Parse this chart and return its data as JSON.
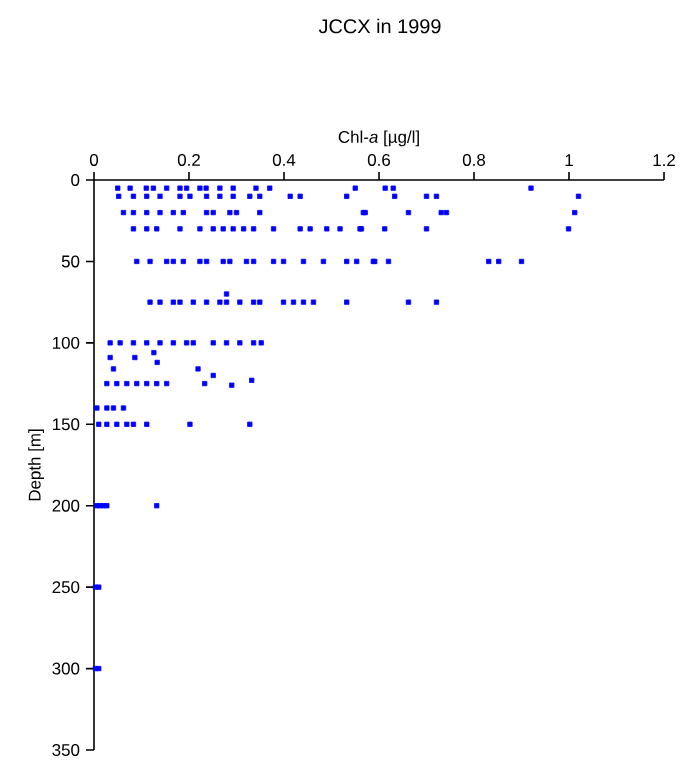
{
  "chart_data": {
    "type": "scatter",
    "title": "JCCX in 1999",
    "xlabel": "Chl-*a* [µg/l]",
    "ylabel": "Depth [m]",
    "xlim": [
      0,
      1.2
    ],
    "xticks": [
      0,
      0.2,
      0.4,
      0.6,
      0.8,
      1,
      1.2
    ],
    "ylim": [
      350,
      0
    ],
    "yticks": [
      0,
      50,
      100,
      150,
      200,
      250,
      300,
      350
    ],
    "grid": false,
    "legend": false,
    "marker": "square",
    "series": [
      {
        "color": "#0000ff",
        "x": [
          0.05,
          0.076,
          0.11,
          0.125,
          0.153,
          0.181,
          0.195,
          0.223,
          0.236,
          0.265,
          0.293,
          0.341,
          0.37,
          0.55,
          0.613,
          0.63,
          0.92,
          0.052,
          0.083,
          0.111,
          0.139,
          0.181,
          0.202,
          0.237,
          0.265,
          0.293,
          0.328,
          0.349,
          0.413,
          0.434,
          0.532,
          0.633,
          0.7,
          0.721,
          1.02,
          0.062,
          0.083,
          0.111,
          0.139,
          0.167,
          0.188,
          0.237,
          0.251,
          0.286,
          0.3,
          0.349,
          0.567,
          0.571,
          0.662,
          0.731,
          0.742,
          1.012,
          0.083,
          0.111,
          0.132,
          0.181,
          0.223,
          0.251,
          0.272,
          0.293,
          0.315,
          0.336,
          0.378,
          0.434,
          0.455,
          0.49,
          0.518,
          0.56,
          0.563,
          0.612,
          0.7,
          0.999,
          0.09,
          0.118,
          0.153,
          0.167,
          0.188,
          0.223,
          0.237,
          0.272,
          0.286,
          0.321,
          0.336,
          0.378,
          0.399,
          0.441,
          0.483,
          0.532,
          0.553,
          0.588,
          0.591,
          0.62,
          0.831,
          0.852,
          0.9,
          0.118,
          0.139,
          0.167,
          0.181,
          0.209,
          0.237,
          0.265,
          0.279,
          0.307,
          0.336,
          0.349,
          0.399,
          0.42,
          0.441,
          0.462,
          0.532,
          0.662,
          0.721,
          0.279,
          0.034,
          0.055,
          0.083,
          0.111,
          0.139,
          0.167,
          0.195,
          0.209,
          0.251,
          0.279,
          0.307,
          0.336,
          0.352,
          0.034,
          0.086,
          0.126,
          0.133,
          0.041,
          0.219,
          0.251,
          0.233,
          0.29,
          0.027,
          0.048,
          0.069,
          0.09,
          0.111,
          0.132,
          0.153,
          0.332,
          0.006,
          0.027,
          0.041,
          0.062,
          0.01,
          0.027,
          0.048,
          0.069,
          0.083,
          0.111,
          0.202,
          0.328,
          0.006,
          0.013,
          0.02,
          0.027,
          0.132,
          0.003,
          0.01,
          0.003,
          0.01
        ],
        "values": [
          5,
          5,
          5,
          5,
          5,
          5,
          5,
          5,
          5,
          5,
          5,
          5,
          5,
          5,
          5,
          5,
          5,
          10,
          10,
          10,
          10,
          10,
          10,
          10,
          10,
          10,
          10,
          10,
          10,
          10,
          10,
          10,
          10,
          10,
          10,
          20,
          20,
          20,
          20,
          20,
          20,
          20,
          20,
          20,
          20,
          20,
          20,
          20,
          20,
          20,
          20,
          20,
          30,
          30,
          30,
          30,
          30,
          30,
          30,
          30,
          30,
          30,
          30,
          30,
          30,
          30,
          30,
          30,
          30,
          30,
          30,
          30,
          50,
          50,
          50,
          50,
          50,
          50,
          50,
          50,
          50,
          50,
          50,
          50,
          50,
          50,
          50,
          50,
          50,
          50,
          50,
          50,
          50,
          50,
          50,
          75,
          75,
          75,
          75,
          75,
          75,
          75,
          75,
          75,
          75,
          75,
          75,
          75,
          75,
          75,
          75,
          75,
          75,
          70,
          100,
          100,
          100,
          100,
          100,
          100,
          100,
          100,
          100,
          100,
          100,
          100,
          100,
          109,
          109,
          106,
          112,
          116,
          116,
          120,
          125,
          126,
          125,
          125,
          125,
          125,
          125,
          125,
          125,
          123,
          140,
          140,
          140,
          140,
          150,
          150,
          150,
          150,
          150,
          150,
          150,
          150,
          200,
          200,
          200,
          200,
          200,
          250,
          250,
          300,
          300
        ]
      }
    ]
  }
}
